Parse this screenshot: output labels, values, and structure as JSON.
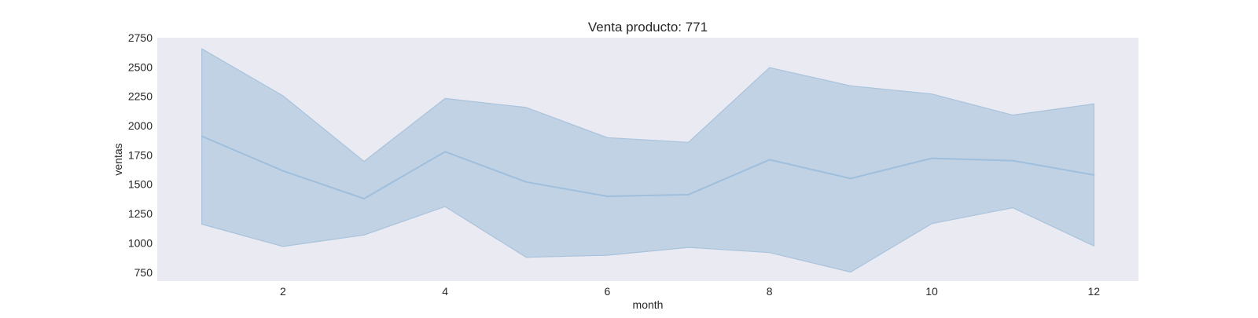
{
  "chart_data": {
    "type": "area",
    "title": "Venta producto: 771",
    "xlabel": "month",
    "ylabel": "ventas",
    "xlim": [
      0.45,
      12.55
    ],
    "ylim": [
      675,
      2750
    ],
    "xticks": [
      2,
      4,
      6,
      8,
      10,
      12
    ],
    "yticks": [
      750,
      1000,
      1250,
      1500,
      1750,
      2000,
      2250,
      2500,
      2750
    ],
    "grid": false,
    "background": "#EAEAF2",
    "colors": {
      "line": "#9FBFDC",
      "band_fill": "#C1D2E4",
      "band_edge": "#A9C3DC"
    },
    "x": [
      1,
      2,
      3,
      4,
      5,
      6,
      7,
      8,
      9,
      10,
      11,
      12
    ],
    "series": [
      {
        "values": [
          1910,
          1615,
          1378,
          1778,
          1520,
          1398,
          1412,
          1710,
          1550,
          1722,
          1702,
          1580
        ],
        "lower": [
          1160,
          970,
          1068,
          1310,
          878,
          895,
          962,
          918,
          752,
          1165,
          1300,
          975
        ],
        "upper": [
          2655,
          2255,
          1695,
          2232,
          2155,
          1898,
          1858,
          2495,
          2340,
          2270,
          2090,
          2185
        ]
      }
    ]
  }
}
